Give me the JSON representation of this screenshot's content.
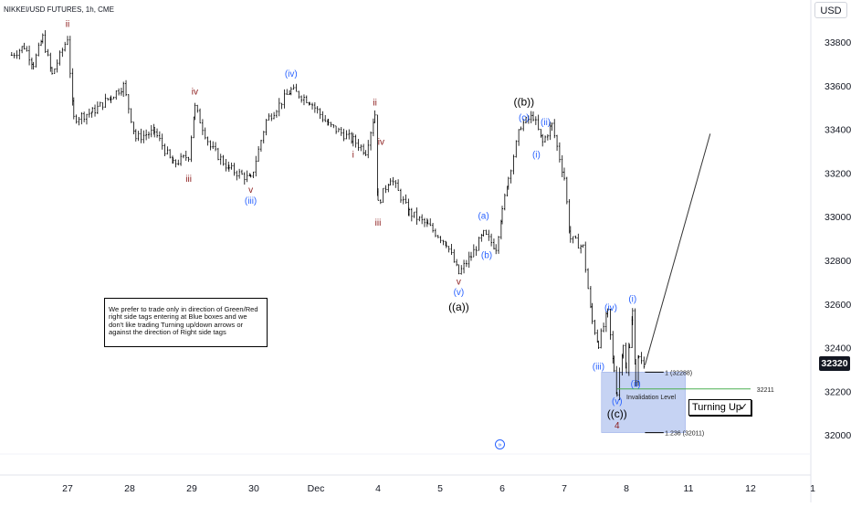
{
  "header": {
    "symbol_title": "NIKKEI/USD FUTURES, 1h, CME",
    "currency_button": "USD"
  },
  "last_price_label": "32320",
  "note_text": "We prefer to trade only in direction of Green/Red right side tags entering at Blue boxes and we don't like trading Turning up/down arrows or against the direction of Right side tags",
  "turning_label": "Turning Up",
  "turning_check": "✓",
  "go_to_realtime_glyph": "»",
  "colors": {
    "wave_red": "#8b1a1a",
    "wave_blue": "#2962ff",
    "wave_black": "#000000",
    "blue_box": "#b3c4ef",
    "green_line": "#4caf50",
    "candle": "#000000",
    "price_tag_bg": "#131722"
  },
  "chart_data": {
    "type": "candlestick",
    "title": "NIKKEI/USD FUTURES, 1h, CME",
    "ylim": [
      31900,
      33920
    ],
    "y_ticks": [
      32000,
      32200,
      32400,
      32600,
      32800,
      33000,
      33200,
      33400,
      33600,
      33800
    ],
    "x_ticks": [
      {
        "label": "27",
        "x": 27
      },
      {
        "label": "28",
        "x": 28
      },
      {
        "label": "29",
        "x": 29
      },
      {
        "label": "30",
        "x": 30
      },
      {
        "label": "Dec",
        "x": 31
      },
      {
        "label": "4",
        "x": 32
      },
      {
        "label": "5",
        "x": 33
      },
      {
        "label": "6",
        "x": 34
      },
      {
        "label": "7",
        "x": 35
      },
      {
        "label": "8",
        "x": 36
      },
      {
        "label": "11",
        "x": 37
      },
      {
        "label": "12",
        "x": 38
      },
      {
        "label": "1",
        "x": 39
      }
    ],
    "xlim": [
      26.1,
      39.0
    ],
    "path": [
      [
        26.1,
        33740
      ],
      [
        26.3,
        33780
      ],
      [
        26.45,
        33700
      ],
      [
        26.6,
        33820
      ],
      [
        26.75,
        33650
      ],
      [
        27.0,
        33820
      ],
      [
        27.1,
        33450
      ],
      [
        27.4,
        33480
      ],
      [
        27.7,
        33550
      ],
      [
        27.9,
        33600
      ],
      [
        28.1,
        33360
      ],
      [
        28.4,
        33390
      ],
      [
        28.7,
        33240
      ],
      [
        28.95,
        33280
      ],
      [
        29.05,
        33500
      ],
      [
        29.3,
        33320
      ],
      [
        29.6,
        33220
      ],
      [
        29.95,
        33170
      ],
      [
        30.2,
        33440
      ],
      [
        30.6,
        33580
      ],
      [
        30.9,
        33530
      ],
      [
        31.2,
        33420
      ],
      [
        31.6,
        33350
      ],
      [
        31.8,
        33300
      ],
      [
        31.95,
        33470
      ],
      [
        32.0,
        33060
      ],
      [
        32.2,
        33180
      ],
      [
        32.5,
        33020
      ],
      [
        32.8,
        32960
      ],
      [
        33.1,
        32880
      ],
      [
        33.3,
        32740
      ],
      [
        33.5,
        32820
      ],
      [
        33.7,
        32920
      ],
      [
        33.9,
        32860
      ],
      [
        34.0,
        33020
      ],
      [
        34.1,
        33180
      ],
      [
        34.3,
        33420
      ],
      [
        34.5,
        33460
      ],
      [
        34.65,
        33340
      ],
      [
        34.8,
        33420
      ],
      [
        35.0,
        33180
      ],
      [
        35.1,
        32900
      ],
      [
        35.3,
        32860
      ],
      [
        35.45,
        32520
      ],
      [
        35.55,
        32420
      ],
      [
        35.7,
        32560
      ],
      [
        35.8,
        32300
      ],
      [
        35.85,
        32190
      ],
      [
        35.95,
        32420
      ],
      [
        36.0,
        32280
      ],
      [
        36.05,
        32420
      ],
      [
        36.1,
        32560
      ],
      [
        36.15,
        32260
      ],
      [
        36.2,
        32360
      ],
      [
        36.3,
        32320
      ]
    ],
    "levels": [
      {
        "label": "1 (32288)",
        "value": 32288
      },
      {
        "label": "1.236 (32011)",
        "value": 32011
      },
      {
        "label": "32211",
        "value": 32211
      },
      {
        "label": "Invalidation Level",
        "value": 32211
      }
    ],
    "blue_box": {
      "x0": 35.6,
      "x1": 36.95,
      "y0": 32011,
      "y1": 32288
    },
    "projection": {
      "from": [
        36.3,
        32320
      ],
      "to": [
        37.35,
        33380
      ]
    },
    "wave_labels": [
      {
        "text": "ii",
        "x": 27.0,
        "y": 33870,
        "color": "red"
      },
      {
        "text": "iii",
        "x": 28.95,
        "y": 33160,
        "color": "red"
      },
      {
        "text": "iv",
        "x": 29.05,
        "y": 33560,
        "color": "red"
      },
      {
        "text": "v",
        "x": 29.95,
        "y": 33110,
        "color": "red"
      },
      {
        "text": "(iii)",
        "x": 29.95,
        "y": 33060,
        "color": "blue"
      },
      {
        "text": "(iv)",
        "x": 30.6,
        "y": 33640,
        "color": "blue"
      },
      {
        "text": "ii",
        "x": 31.95,
        "y": 33510,
        "color": "red"
      },
      {
        "text": "i",
        "x": 31.6,
        "y": 33270,
        "color": "red"
      },
      {
        "text": "iv",
        "x": 32.05,
        "y": 33330,
        "color": "red"
      },
      {
        "text": "iii",
        "x": 32.0,
        "y": 32960,
        "color": "red"
      },
      {
        "text": "v",
        "x": 33.3,
        "y": 32690,
        "color": "red"
      },
      {
        "text": "(v)",
        "x": 33.3,
        "y": 32640,
        "color": "blue"
      },
      {
        "text": "((a))",
        "x": 33.3,
        "y": 32570,
        "color": "black"
      },
      {
        "text": "(a)",
        "x": 33.7,
        "y": 32990,
        "color": "blue"
      },
      {
        "text": "(b)",
        "x": 33.75,
        "y": 32810,
        "color": "blue"
      },
      {
        "text": "((b))",
        "x": 34.35,
        "y": 33510,
        "color": "black"
      },
      {
        "text": "(c)",
        "x": 34.35,
        "y": 33440,
        "color": "blue"
      },
      {
        "text": "(ii)",
        "x": 34.7,
        "y": 33420,
        "color": "blue"
      },
      {
        "text": "(i)",
        "x": 34.55,
        "y": 33270,
        "color": "blue"
      },
      {
        "text": "(iv)",
        "x": 35.75,
        "y": 32570,
        "color": "blue"
      },
      {
        "text": "(iii)",
        "x": 35.55,
        "y": 32300,
        "color": "blue"
      },
      {
        "text": "(i)",
        "x": 36.1,
        "y": 32610,
        "color": "blue"
      },
      {
        "text": "(ii)",
        "x": 36.15,
        "y": 32220,
        "color": "blue"
      },
      {
        "text": "(v)",
        "x": 35.85,
        "y": 32140,
        "color": "blue"
      },
      {
        "text": "((c))",
        "x": 35.85,
        "y": 32080,
        "color": "black"
      },
      {
        "text": "4",
        "x": 35.85,
        "y": 32030,
        "color": "red"
      }
    ]
  }
}
